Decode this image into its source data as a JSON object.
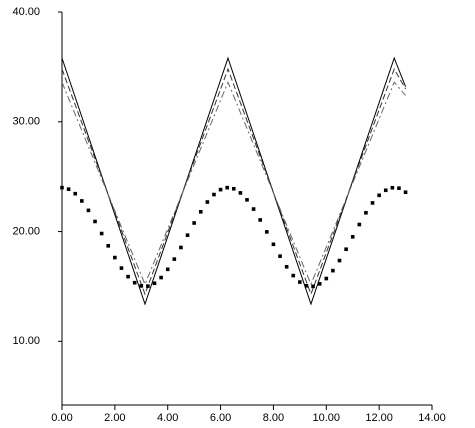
{
  "chart_data": {
    "type": "line",
    "xlim": [
      0,
      14
    ],
    "ylim": [
      4.2,
      40
    ],
    "xticks": [
      {
        "value": 0,
        "label": "0.00"
      },
      {
        "value": 2,
        "label": "2.00"
      },
      {
        "value": 4,
        "label": "4.00"
      },
      {
        "value": 6,
        "label": "6.00"
      },
      {
        "value": 8,
        "label": "8.00"
      },
      {
        "value": 10,
        "label": "10.00"
      },
      {
        "value": 12,
        "label": "12.00"
      },
      {
        "value": 14,
        "label": "14.00"
      }
    ],
    "yticks": [
      {
        "value": 10,
        "label": "10.00"
      },
      {
        "value": 20,
        "label": "20.00"
      },
      {
        "value": 30,
        "label": "30.00"
      },
      {
        "value": 40,
        "label": "40.00"
      }
    ],
    "series": [
      {
        "color": "#000000",
        "style": "solid",
        "x": [
          0,
          3.14,
          6.28,
          9.42,
          12.57,
          13.0
        ],
        "values": [
          35.8,
          13.4,
          35.8,
          13.4,
          35.8,
          33.2
        ]
      },
      {
        "color": "#333333",
        "style": "dashed",
        "x": [
          0,
          3.14,
          6.28,
          9.42,
          12.57,
          13.0
        ],
        "values": [
          34.8,
          14.3,
          34.8,
          14.3,
          34.8,
          33.0
        ]
      },
      {
        "color": "#666666",
        "style": "dashdot",
        "x": [
          0,
          3.14,
          6.28,
          9.42,
          12.57,
          13.0
        ],
        "values": [
          33.6,
          15.2,
          33.6,
          15.2,
          33.6,
          32.4
        ]
      },
      {
        "color": "#000000",
        "style": "markers",
        "x": [
          0,
          0.25,
          0.5,
          0.75,
          1,
          1.25,
          1.5,
          1.75,
          2,
          2.25,
          2.5,
          2.75,
          3,
          3.25,
          3.5,
          3.75,
          4,
          4.25,
          4.5,
          4.75,
          5,
          5.25,
          5.5,
          5.75,
          6,
          6.25,
          6.5,
          6.75,
          7,
          7.25,
          7.5,
          7.75,
          8,
          8.25,
          8.5,
          8.75,
          9,
          9.25,
          9.5,
          9.75,
          10,
          10.25,
          10.5,
          10.75,
          11,
          11.25,
          11.5,
          11.75,
          12,
          12.25,
          12.5,
          12.75,
          13
        ],
        "values": [
          24.0,
          23.86,
          23.45,
          22.79,
          21.93,
          20.92,
          19.82,
          18.7,
          17.63,
          16.67,
          15.89,
          15.34,
          15.05,
          15.03,
          15.29,
          15.81,
          16.56,
          17.49,
          18.55,
          19.67,
          20.78,
          21.8,
          22.69,
          23.37,
          23.82,
          24.0,
          23.9,
          23.52,
          22.89,
          22.05,
          21.06,
          19.97,
          18.84,
          17.76,
          16.79,
          15.99,
          15.4,
          15.06,
          15.01,
          15.24,
          15.72,
          16.44,
          17.36,
          18.39,
          19.52,
          20.64,
          21.71,
          22.61,
          23.3,
          23.76,
          23.99,
          23.95,
          23.58
        ]
      }
    ]
  }
}
